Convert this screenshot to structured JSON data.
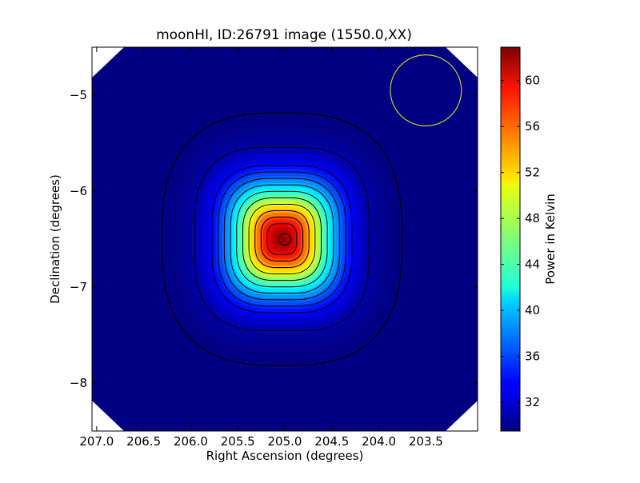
{
  "chart_data": {
    "type": "heatmap",
    "title": "moonHI, ID:26791 image (1550.0,XX)",
    "xlabel": "Right Ascension (degrees)",
    "ylabel": "Declination (degrees)",
    "xlim": [
      207.05,
      202.95
    ],
    "ylim": [
      -8.5,
      -4.5
    ],
    "x_ticks": [
      207.0,
      206.5,
      206.0,
      205.5,
      205.0,
      204.5,
      204.0,
      203.5
    ],
    "x_tick_labels": [
      "207.0",
      "206.5",
      "206.0",
      "205.5",
      "205.0",
      "204.5",
      "204.0",
      "203.5"
    ],
    "y_ticks": [
      -5,
      -6,
      -7,
      -8
    ],
    "y_tick_labels": [
      "−5",
      "−6",
      "−7",
      "−8"
    ],
    "colormap": "jet",
    "colorbar": {
      "label": "Power in Kelvin",
      "range": [
        29.5,
        62.9
      ],
      "ticks": [
        32,
        36,
        40,
        44,
        48,
        52,
        56,
        60
      ],
      "tick_labels": [
        "32",
        "36",
        "40",
        "44",
        "48",
        "52",
        "56",
        "60"
      ]
    },
    "peak": {
      "ra": 205.03,
      "dec": -6.5,
      "value": 62.9
    },
    "background_value": 29.5,
    "contours": {
      "color": "#000000",
      "count": 12
    },
    "beam_marker": {
      "ra": 203.5,
      "dec": -4.95,
      "radius_deg": 0.37,
      "color": "#c8c832"
    },
    "source_marker": {
      "ra": 205.0,
      "dec": -6.5,
      "radius_deg": 0.06,
      "color": "#000000"
    }
  }
}
